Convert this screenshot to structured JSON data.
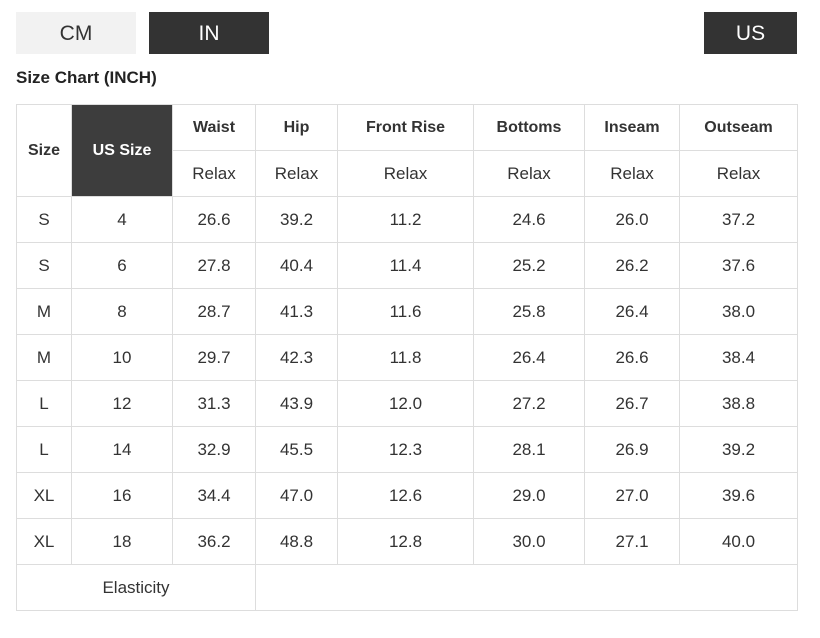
{
  "tabs": {
    "cm": "CM",
    "in": "IN",
    "us": "US"
  },
  "title": "Size Chart (INCH)",
  "table": {
    "header": [
      "Size",
      "US Size",
      "Waist",
      "Hip",
      "Front Rise",
      "Bottoms",
      "Inseam",
      "Outseam"
    ],
    "subheader": [
      "Relax",
      "Relax",
      "Relax",
      "Relax",
      "Relax",
      "Relax"
    ],
    "rows": [
      [
        "S",
        "4",
        "26.6",
        "39.2",
        "11.2",
        "24.6",
        "26.0",
        "37.2"
      ],
      [
        "S",
        "6",
        "27.8",
        "40.4",
        "11.4",
        "25.2",
        "26.2",
        "37.6"
      ],
      [
        "M",
        "8",
        "28.7",
        "41.3",
        "11.6",
        "25.8",
        "26.4",
        "38.0"
      ],
      [
        "M",
        "10",
        "29.7",
        "42.3",
        "11.8",
        "26.4",
        "26.6",
        "38.4"
      ],
      [
        "L",
        "12",
        "31.3",
        "43.9",
        "12.0",
        "27.2",
        "26.7",
        "38.8"
      ],
      [
        "L",
        "14",
        "32.9",
        "45.5",
        "12.3",
        "28.1",
        "26.9",
        "39.2"
      ],
      [
        "XL",
        "16",
        "34.4",
        "47.0",
        "12.6",
        "29.0",
        "27.0",
        "39.6"
      ],
      [
        "XL",
        "18",
        "36.2",
        "48.8",
        "12.8",
        "30.0",
        "27.1",
        "40.0"
      ]
    ],
    "footer": "Elasticity"
  }
}
